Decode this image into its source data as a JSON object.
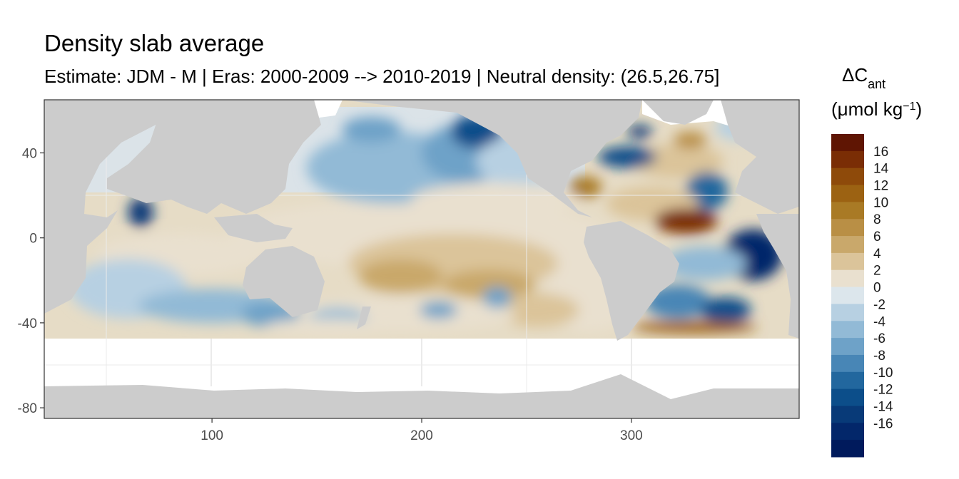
{
  "chart_data": {
    "type": "heatmap",
    "title": "Density slab average",
    "subtitle": "Estimate: JDM - M | Eras: 2000-2009 --> 2010-2019 | Neutral density: (26.5,26.75]",
    "xlabel": "",
    "ylabel": "",
    "xlim": [
      20,
      380
    ],
    "ylim": [
      -85,
      65
    ],
    "x_ticks": [
      100,
      200,
      300
    ],
    "y_ticks": [
      40,
      0,
      -40,
      -80
    ],
    "x_tick_labels": [
      "100",
      "200",
      "300"
    ],
    "y_tick_labels": [
      "40",
      "0",
      "-40",
      "-80"
    ],
    "grid": true,
    "land_color": "#cccccc",
    "nodata_color": "#ffffff",
    "legend": {
      "title_main": "ΔC",
      "title_sub": "ant",
      "unit_open": "(μmol kg",
      "unit_sup": "−1",
      "unit_close": ")",
      "placement": "right",
      "labels": [
        "16",
        "14",
        "12",
        "10",
        "8",
        "6",
        "4",
        "2",
        "0",
        "-2",
        "-4",
        "-6",
        "-8",
        "-10",
        "-12",
        "-14",
        "-16"
      ],
      "colors": [
        "#5f1503",
        "#7a2d05",
        "#8e4a0a",
        "#9c6212",
        "#a97a25",
        "#b98f45",
        "#c9a86b",
        "#dbc49a",
        "#e9e0cf",
        "#dce6ec",
        "#b7d0e2",
        "#92bad6",
        "#6ea2c8",
        "#4886b6",
        "#22679e",
        "#0c4e8a",
        "#083a78",
        "#03276a",
        "#001a5c"
      ]
    },
    "regions": [
      {
        "lon": 198,
        "lat": 2,
        "rx": 90,
        "ry": 16,
        "value": 2
      },
      {
        "lon": 270,
        "lat": -8,
        "rx": 36,
        "ry": 14,
        "value": 2
      },
      {
        "lon": 215,
        "lat": -12,
        "rx": 50,
        "ry": 14,
        "value": 5
      },
      {
        "lon": 190,
        "lat": -18,
        "rx": 20,
        "ry": 8,
        "value": 7
      },
      {
        "lon": 232,
        "lat": -22,
        "rx": 22,
        "ry": 7,
        "value": 6
      },
      {
        "lon": 280,
        "lat": -28,
        "rx": 22,
        "ry": 16,
        "value": 3
      },
      {
        "lon": 255,
        "lat": -34,
        "rx": 20,
        "ry": 8,
        "value": 4
      },
      {
        "lon": 190,
        "lat": -36,
        "rx": 55,
        "ry": 8,
        "value": 2
      },
      {
        "lon": 185,
        "lat": 33,
        "rx": 40,
        "ry": 17,
        "value": -3
      },
      {
        "lon": 222,
        "lat": 40,
        "rx": 22,
        "ry": 14,
        "value": -6
      },
      {
        "lon": 226,
        "lat": 50,
        "rx": 12,
        "ry": 8,
        "value": -11
      },
      {
        "lon": 176,
        "lat": 51,
        "rx": 14,
        "ry": 6,
        "value": -5
      },
      {
        "lon": 248,
        "lat": 36,
        "rx": 22,
        "ry": 12,
        "value": -2
      },
      {
        "lon": 235,
        "lat": 18,
        "rx": 40,
        "ry": 8,
        "value": 2
      },
      {
        "lon": 66,
        "lat": 12,
        "rx": 6,
        "ry": 7,
        "value": -13
      },
      {
        "lon": 85,
        "lat": -8,
        "rx": 40,
        "ry": 10,
        "value": 3
      },
      {
        "lon": 60,
        "lat": -24,
        "rx": 28,
        "ry": 14,
        "value": -2
      },
      {
        "lon": 100,
        "lat": -32,
        "rx": 35,
        "ry": 8,
        "value": -3
      },
      {
        "lon": 128,
        "lat": -36,
        "rx": 14,
        "ry": 6,
        "value": -6
      },
      {
        "lon": 160,
        "lat": -38,
        "rx": 14,
        "ry": 5,
        "value": -3
      },
      {
        "lon": 208,
        "lat": -34,
        "rx": 9,
        "ry": 4,
        "value": -6
      },
      {
        "lon": 236,
        "lat": -28,
        "rx": 7,
        "ry": 5,
        "value": -5
      },
      {
        "lon": 155,
        "lat": -42,
        "rx": 30,
        "ry": 4,
        "value": 2
      },
      {
        "lon": 322,
        "lat": 36,
        "rx": 22,
        "ry": 8,
        "value": 5
      },
      {
        "lon": 298,
        "lat": 38,
        "rx": 14,
        "ry": 5,
        "value": -11
      },
      {
        "lon": 278,
        "lat": 24,
        "rx": 8,
        "ry": 5,
        "value": 11
      },
      {
        "lon": 336,
        "lat": 22,
        "rx": 10,
        "ry": 9,
        "value": -9
      },
      {
        "lon": 310,
        "lat": 16,
        "rx": 22,
        "ry": 8,
        "value": 4
      },
      {
        "lon": 326,
        "lat": 8,
        "rx": 15,
        "ry": 6,
        "value": 16
      },
      {
        "lon": 358,
        "lat": -8,
        "rx": 14,
        "ry": 12,
        "value": -16
      },
      {
        "lon": 335,
        "lat": -12,
        "rx": 20,
        "ry": 8,
        "value": -3
      },
      {
        "lon": 322,
        "lat": -30,
        "rx": 16,
        "ry": 8,
        "value": -7
      },
      {
        "lon": 345,
        "lat": -34,
        "rx": 12,
        "ry": 6,
        "value": -12
      },
      {
        "lon": 330,
        "lat": -42,
        "rx": 30,
        "ry": 3,
        "value": 13
      },
      {
        "lon": 328,
        "lat": 46,
        "rx": 8,
        "ry": 4,
        "value": 8
      },
      {
        "lon": 350,
        "lat": 52,
        "rx": 10,
        "ry": 6,
        "value": -2
      },
      {
        "lon": 304,
        "lat": 50,
        "rx": 6,
        "ry": 3,
        "value": -13
      }
    ]
  }
}
